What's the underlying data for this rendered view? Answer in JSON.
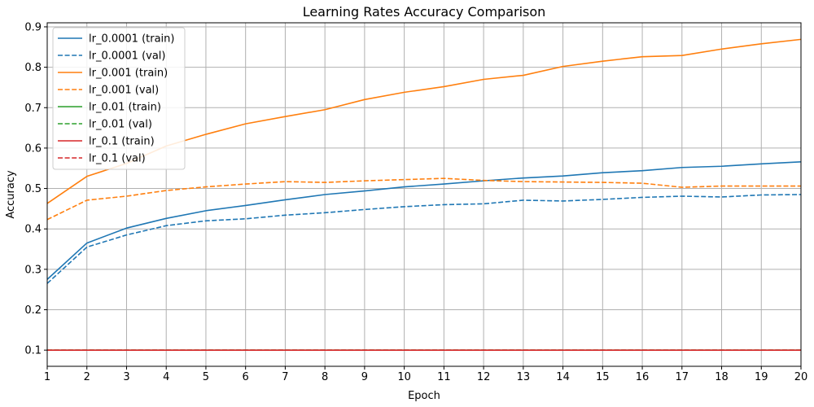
{
  "chart_data": {
    "type": "line",
    "title": "Learning Rates Accuracy Comparison",
    "xlabel": "Epoch",
    "ylabel": "Accuracy",
    "xlim": [
      1,
      20
    ],
    "ylim": [
      0.06,
      0.91
    ],
    "x": [
      1,
      2,
      3,
      4,
      5,
      6,
      7,
      8,
      9,
      10,
      11,
      12,
      13,
      14,
      15,
      16,
      17,
      18,
      19,
      20
    ],
    "x_ticks": [
      1,
      2,
      3,
      4,
      5,
      6,
      7,
      8,
      9,
      10,
      11,
      12,
      13,
      14,
      15,
      16,
      17,
      18,
      19,
      20
    ],
    "y_ticks": [
      0.1,
      0.2,
      0.3,
      0.4,
      0.5,
      0.6,
      0.7,
      0.8,
      0.9
    ],
    "y_tick_labels": [
      "0.1",
      "0.2",
      "0.3",
      "0.4",
      "0.5",
      "0.6",
      "0.7",
      "0.8",
      "0.9"
    ],
    "grid": true,
    "legend_position": "top-left",
    "series": [
      {
        "name": "lr_0.0001 (train)",
        "color": "#1f77b4",
        "dashed": false,
        "values": [
          0.275,
          0.365,
          0.402,
          0.426,
          0.445,
          0.458,
          0.472,
          0.485,
          0.494,
          0.504,
          0.511,
          0.519,
          0.526,
          0.531,
          0.539,
          0.544,
          0.552,
          0.555,
          0.561,
          0.566
        ]
      },
      {
        "name": "lr_0.0001 (val)",
        "color": "#1f77b4",
        "dashed": true,
        "values": [
          0.265,
          0.355,
          0.385,
          0.408,
          0.42,
          0.425,
          0.434,
          0.44,
          0.448,
          0.455,
          0.46,
          0.462,
          0.471,
          0.469,
          0.473,
          0.478,
          0.481,
          0.479,
          0.484,
          0.485
        ]
      },
      {
        "name": "lr_0.001 (train)",
        "color": "#ff7f0e",
        "dashed": false,
        "values": [
          0.463,
          0.53,
          0.562,
          0.605,
          0.634,
          0.66,
          0.678,
          0.695,
          0.72,
          0.738,
          0.752,
          0.77,
          0.78,
          0.802,
          0.815,
          0.826,
          0.829,
          0.845,
          0.858,
          0.869
        ]
      },
      {
        "name": "lr_0.001 (val)",
        "color": "#ff7f0e",
        "dashed": true,
        "values": [
          0.423,
          0.471,
          0.481,
          0.495,
          0.504,
          0.511,
          0.517,
          0.515,
          0.519,
          0.522,
          0.525,
          0.52,
          0.517,
          0.516,
          0.515,
          0.513,
          0.503,
          0.506,
          0.506,
          0.506
        ]
      },
      {
        "name": "lr_0.01 (train)",
        "color": "#2ca02c",
        "dashed": false,
        "values": [
          0.1,
          0.1,
          0.1,
          0.1,
          0.1,
          0.1,
          0.1,
          0.1,
          0.1,
          0.1,
          0.1,
          0.1,
          0.1,
          0.1,
          0.1,
          0.1,
          0.1,
          0.1,
          0.1,
          0.1
        ]
      },
      {
        "name": "lr_0.01 (val)",
        "color": "#2ca02c",
        "dashed": true,
        "values": [
          0.1,
          0.1,
          0.1,
          0.1,
          0.1,
          0.1,
          0.1,
          0.1,
          0.1,
          0.1,
          0.1,
          0.1,
          0.1,
          0.1,
          0.1,
          0.1,
          0.1,
          0.1,
          0.1,
          0.1
        ]
      },
      {
        "name": "lr_0.1 (train)",
        "color": "#d62728",
        "dashed": false,
        "values": [
          0.1,
          0.1,
          0.1,
          0.1,
          0.1,
          0.1,
          0.1,
          0.1,
          0.1,
          0.1,
          0.1,
          0.1,
          0.1,
          0.1,
          0.1,
          0.1,
          0.1,
          0.1,
          0.1,
          0.1
        ]
      },
      {
        "name": "lr_0.1 (val)",
        "color": "#d62728",
        "dashed": true,
        "values": [
          0.1,
          0.1,
          0.1,
          0.1,
          0.1,
          0.1,
          0.1,
          0.1,
          0.1,
          0.1,
          0.1,
          0.1,
          0.1,
          0.1,
          0.1,
          0.1,
          0.1,
          0.1,
          0.1,
          0.1
        ]
      }
    ]
  }
}
